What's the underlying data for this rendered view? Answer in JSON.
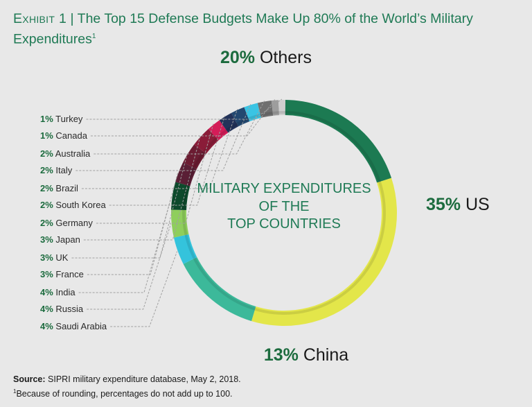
{
  "title": {
    "exhibit": "Exhibit 1",
    "separator": "|",
    "text": "The Top 15 Defense Budgets Make Up 80% of the World’s Military Expenditures",
    "footnote_marker": "1"
  },
  "chart_data": {
    "type": "pie",
    "center_label": [
      "MILITARY EXPENDITURES",
      "OF THE",
      "TOP COUNTRIES"
    ],
    "slices": [
      {
        "label": "US",
        "value": 35,
        "display": "35%",
        "color": "#e3e64a"
      },
      {
        "label": "China",
        "value": 13,
        "display": "13%",
        "color": "#3cb99a"
      },
      {
        "label": "Saudi Arabia",
        "value": 4,
        "display": "4%",
        "color": "#34c3dc"
      },
      {
        "label": "Russia",
        "value": 4,
        "display": "4%",
        "color": "#8fce5c"
      },
      {
        "label": "India",
        "value": 4,
        "display": "4%",
        "color": "#0d4a2c"
      },
      {
        "label": "France",
        "value": 3,
        "display": "3%",
        "color": "#5a1f35"
      },
      {
        "label": "UK",
        "value": 3,
        "display": "3%",
        "color": "#6b1c32"
      },
      {
        "label": "Japan",
        "value": 3,
        "display": "3%",
        "color": "#8a1c38"
      },
      {
        "label": "Germany",
        "value": 2,
        "display": "2%",
        "color": "#d41c58"
      },
      {
        "label": "South Korea",
        "value": 2,
        "display": "2%",
        "color": "#23335a"
      },
      {
        "label": "Brazil",
        "value": 2,
        "display": "2%",
        "color": "#234870"
      },
      {
        "label": "Italy",
        "value": 2,
        "display": "2%",
        "color": "#3ac4e4"
      },
      {
        "label": "Australia",
        "value": 2,
        "display": "2%",
        "color": "#6f6f6f"
      },
      {
        "label": "Canada",
        "value": 1,
        "display": "1%",
        "color": "#9d9d9d"
      },
      {
        "label": "Turkey",
        "value": 1,
        "display": "1%",
        "color": "#cfcfcf"
      },
      {
        "label": "Others",
        "value": 20,
        "display": "20%",
        "color": "#1c7a52"
      }
    ]
  },
  "colors": {
    "accent_green": "#1f7a55",
    "label_green": "#1c6b3e",
    "leader_line": "#a0a0a0",
    "background": "#e8e8e8"
  },
  "footer": {
    "source_label": "Source:",
    "source_text": "SIPRI military expenditure database, May 2, 2018.",
    "footnote_marker": "1",
    "footnote_text": "Because of rounding, percentages do not add up to 100."
  }
}
